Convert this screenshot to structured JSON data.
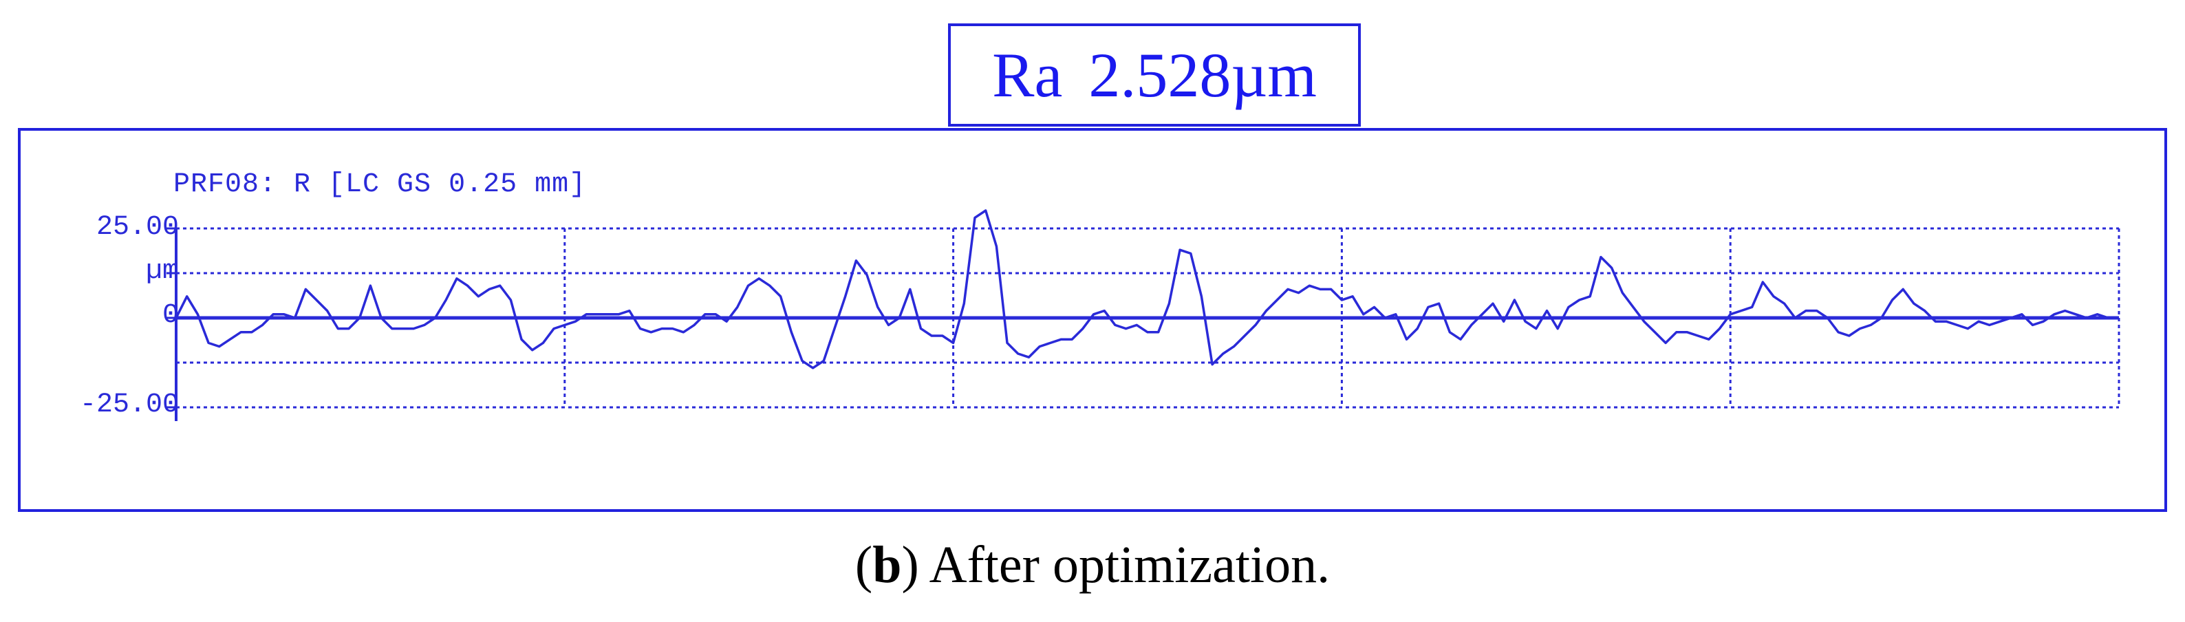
{
  "ra_box": {
    "label": "Ra",
    "value": "2.528µm"
  },
  "caption": {
    "open_paren": "(",
    "letter": "b",
    "rest": ") After optimization."
  },
  "chart_data": {
    "type": "line",
    "title": "PRF08: R [LC GS 0.25 mm]",
    "ylabel": "µm",
    "y_ticks": [
      "25.00",
      "0",
      "-25.00"
    ],
    "ylim": [
      -25,
      25
    ],
    "grid": "dotted",
    "series": [
      {
        "color": "#2a2ad8",
        "x": [
          0,
          1,
          2,
          3,
          4,
          5,
          6,
          7,
          8,
          9,
          10,
          11,
          12,
          13,
          14,
          15,
          16,
          17,
          18,
          19,
          20,
          21,
          22,
          23,
          24,
          25,
          26,
          27,
          28,
          29,
          30,
          31,
          32,
          33,
          34,
          35,
          36,
          37,
          38,
          39,
          40,
          41,
          42,
          43,
          44,
          45,
          46,
          47,
          48,
          49,
          50,
          51,
          52,
          53,
          54,
          55,
          56,
          57,
          58,
          59,
          60,
          61,
          62,
          63,
          64,
          65,
          66,
          67,
          68,
          69,
          70,
          71,
          72,
          73,
          74,
          75,
          76,
          77,
          78,
          79,
          80,
          81,
          82,
          83,
          84,
          85,
          86,
          87,
          88,
          89,
          90,
          91,
          92,
          93,
          94,
          95,
          96,
          97,
          98,
          99,
          100,
          101,
          102,
          103,
          104,
          105,
          106,
          107,
          108,
          109,
          110,
          111,
          112,
          113,
          114,
          115,
          116,
          117,
          118,
          119,
          120,
          121,
          122,
          123,
          124,
          125,
          126,
          127,
          128,
          129,
          130,
          131,
          132,
          133,
          134,
          135,
          136,
          137,
          138,
          139,
          140,
          141,
          142,
          143,
          144,
          145,
          146,
          147,
          148,
          149,
          150,
          151,
          152,
          153,
          154,
          155,
          156,
          157,
          158,
          159,
          160,
          161,
          162,
          163,
          164,
          165,
          166,
          167,
          168,
          169,
          170,
          171,
          172,
          173,
          174,
          175,
          176,
          177,
          178,
          179,
          180
        ],
        "values": [
          0,
          6,
          1,
          -7,
          -8,
          -6,
          -4,
          -4,
          -2,
          1,
          1,
          0,
          8,
          5,
          2,
          -3,
          -3,
          0,
          9,
          0,
          -3,
          -3,
          -3,
          -2,
          0,
          5,
          11,
          9,
          6,
          8,
          9,
          5,
          -6,
          -9,
          -7,
          -3,
          -2,
          -1,
          1,
          1,
          1,
          1,
          2,
          -3,
          -4,
          -3,
          -3,
          -4,
          -2,
          1,
          1,
          -1,
          3,
          9,
          11,
          9,
          6,
          -4,
          -12,
          -14,
          -12,
          -3,
          6,
          16,
          12,
          3,
          -2,
          0,
          8,
          -3,
          -5,
          -5,
          -7,
          4,
          28,
          30,
          20,
          -7,
          -10,
          -11,
          -8,
          -7,
          -6,
          -6,
          -3,
          1,
          2,
          -2,
          -3,
          -2,
          -4,
          -4,
          4,
          19,
          18,
          6,
          -13,
          -10,
          -8,
          -5,
          -2,
          2,
          5,
          8,
          7,
          9,
          8,
          8,
          5,
          6,
          1,
          3,
          0,
          1,
          -6,
          -3,
          3,
          4,
          -4,
          -6,
          -2,
          1,
          4,
          -1,
          5,
          -1,
          -3,
          2,
          -3,
          3,
          5,
          6,
          17,
          14,
          7,
          3,
          -1,
          -4,
          -7,
          -4,
          -4,
          -5,
          -6,
          -3,
          1,
          2,
          3,
          10,
          6,
          4,
          0,
          2,
          2,
          0,
          -4,
          -5,
          -3,
          -2,
          0,
          5,
          8,
          4,
          2,
          -1,
          -1,
          -2,
          -3,
          -1,
          -2,
          -1,
          0,
          1,
          -2,
          -1,
          1,
          2,
          1,
          0,
          1,
          0,
          0
        ]
      }
    ]
  }
}
